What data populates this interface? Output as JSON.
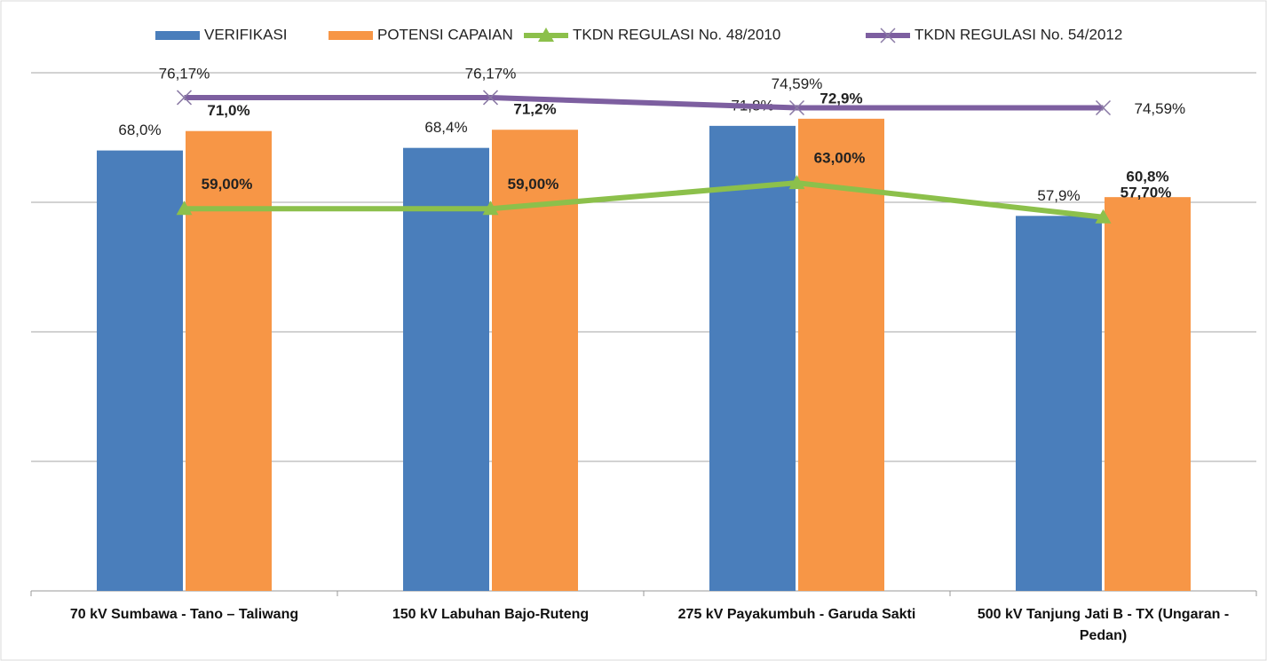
{
  "chart_data": {
    "type": "bar_line",
    "categories": [
      "70 kV Sumbawa - Tano – Taliwang",
      "150 kV Labuhan Bajo-Ruteng",
      "275 kV Payakumbuh - Garuda Sakti",
      "500 kV Tanjung Jati B - TX (Ungaran - Pedan)"
    ],
    "series": [
      {
        "name": "VERIFIKASI",
        "type": "bar",
        "color": "#4a7ebb",
        "values": [
          68.0,
          68.4,
          71.8,
          57.9
        ],
        "value_labels": [
          "68,0%",
          "68,4%",
          "71,8%",
          "57,9%"
        ]
      },
      {
        "name": "POTENSI CAPAIAN",
        "type": "bar",
        "color": "#f79646",
        "values": [
          71.0,
          71.2,
          72.9,
          60.8
        ],
        "value_labels": [
          "71,0%",
          "71,2%",
          "72,9%",
          "60,8%"
        ]
      },
      {
        "name": "TKDN REGULASI No. 48/2010",
        "type": "line",
        "marker": "triangle",
        "color": "#8cc04b",
        "values": [
          59.0,
          59.0,
          63.0,
          57.7
        ],
        "value_labels": [
          "59,00%",
          "59,00%",
          "63,00%",
          "57,70%"
        ]
      },
      {
        "name": "TKDN REGULASI No. 54/2012",
        "type": "line",
        "marker": "x",
        "color": "#7d5fa0",
        "values": [
          76.17,
          76.17,
          74.59,
          74.59
        ],
        "value_labels": [
          "76,17%",
          "76,17%",
          "74,59%",
          "74,59%"
        ]
      }
    ],
    "ylim": [
      0,
      80
    ],
    "yticks": [
      0,
      20,
      40,
      60,
      80
    ],
    "grid": true,
    "legend": "top"
  }
}
